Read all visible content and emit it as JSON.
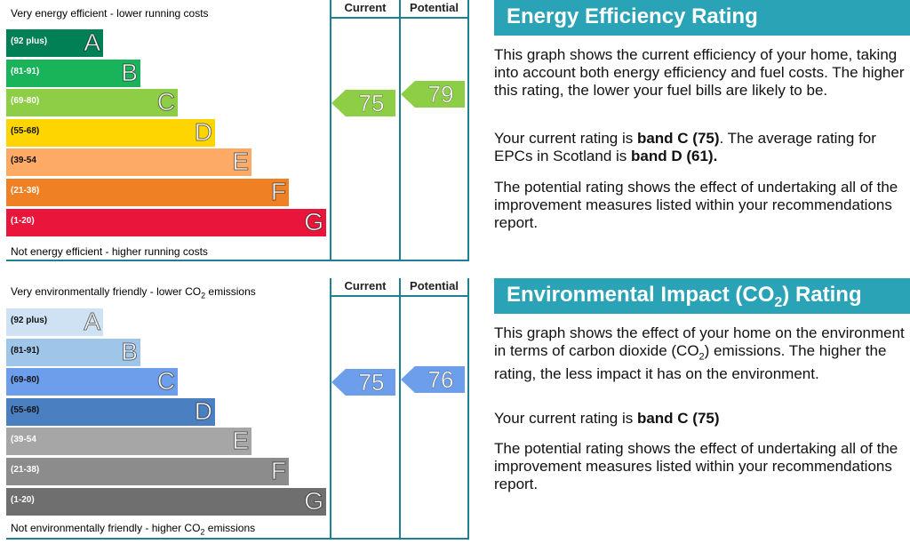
{
  "energy": {
    "top_caption": "Very energy efficient - lower running costs",
    "bottom_caption": "Not energy efficient - higher running costs",
    "col_current": "Current",
    "col_potential": "Potential",
    "bands": [
      {
        "range": "(92 plus)",
        "letter": "A",
        "color": "#008054"
      },
      {
        "range": "(81-91)",
        "letter": "B",
        "color": "#19b459"
      },
      {
        "range": "(69-80)",
        "letter": "C",
        "color": "#8dce46"
      },
      {
        "range": "(55-68)",
        "letter": "D",
        "color": "#ffd500"
      },
      {
        "range": "(39-54",
        "letter": "E",
        "color": "#fcaa65"
      },
      {
        "range": "(21-38)",
        "letter": "F",
        "color": "#ef8023"
      },
      {
        "range": "(1-20)",
        "letter": "G",
        "color": "#e9153b"
      }
    ],
    "current": "75",
    "potential": "79",
    "arrow_color": "#8dce46"
  },
  "environment": {
    "top_caption": "Very environmentally friendly - lower CO",
    "top_caption_sub": "2",
    "top_caption_tail": " emissions",
    "bottom_caption": "Not environmentally friendly - higher CO",
    "bottom_caption_sub": "2",
    "bottom_caption_tail": " emissions",
    "col_current": "Current",
    "col_potential": "Potential",
    "bands": [
      {
        "range": "(92 plus)",
        "letter": "A",
        "color": "#cfe2f3"
      },
      {
        "range": "(81-91)",
        "letter": "B",
        "color": "#9fc5e8"
      },
      {
        "range": "(69-80)",
        "letter": "C",
        "color": "#6d9eeb"
      },
      {
        "range": "(55-68)",
        "letter": "D",
        "color": "#4a7fc1"
      },
      {
        "range": "(39-54",
        "letter": "E",
        "color": "#a6a6a6"
      },
      {
        "range": "(21-38)",
        "letter": "F",
        "color": "#8c8c8c"
      },
      {
        "range": "(1-20)",
        "letter": "G",
        "color": "#6f6f6f"
      }
    ],
    "current": "75",
    "potential": "76",
    "arrow_color": "#6d9eeb"
  },
  "energy_text": {
    "heading": "Energy Efficiency Rating",
    "p1": "This graph shows the current efficiency of your home, taking into account both energy efficiency and fuel costs. The higher this rating, the lower your fuel bills are likely to be.",
    "p2_a": "Your current rating is ",
    "p2_b": "band C (75)",
    "p2_c": ". The average rating for EPCs in Scotland is ",
    "p2_d": "band D (61).",
    "p3": "The potential rating shows the effect of undertaking all of the improvement measures listed within your recommendations report."
  },
  "env_text": {
    "heading_a": "Environmental Impact (CO",
    "heading_sub": "2",
    "heading_b": ") Rating",
    "p1_a": "This graph shows the effect of your home on the environment in terms of carbon dioxide (CO",
    "p1_sub": "2",
    "p1_b": ") emissions. The higher the rating, the less impact it has on the environment.",
    "p2_a": "Your current rating is ",
    "p2_b": "band C (75)",
    "p3": "The potential rating shows the effect of undertaking all of the improvement measures listed within your recommendations report."
  }
}
